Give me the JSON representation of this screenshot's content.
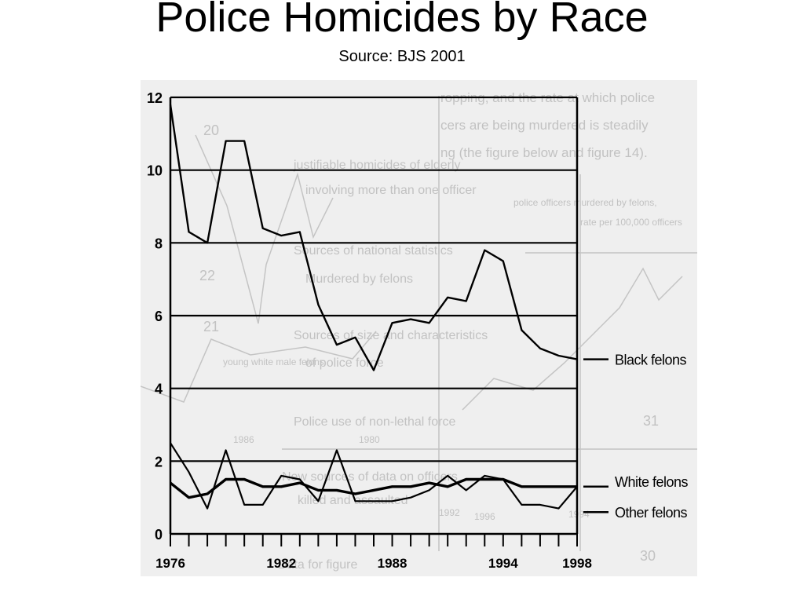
{
  "slide": {
    "title": "Police Homicides by Race",
    "subtitle": "Source: BJS 2001"
  },
  "chart_data": {
    "type": "line",
    "title": "",
    "xlabel": "",
    "ylabel": "",
    "xlim": [
      1976,
      1998
    ],
    "ylim": [
      0,
      12
    ],
    "x_ticks": [
      1976,
      1982,
      1988,
      1994,
      1998
    ],
    "y_ticks": [
      0,
      2,
      4,
      6,
      8,
      10,
      12
    ],
    "grid": "horizontal",
    "x": [
      1976,
      1977,
      1978,
      1979,
      1980,
      1981,
      1982,
      1983,
      1984,
      1985,
      1986,
      1987,
      1988,
      1989,
      1990,
      1991,
      1992,
      1993,
      1994,
      1995,
      1996,
      1997,
      1998
    ],
    "series": [
      {
        "name": "Black felons",
        "color": "#000000",
        "values": [
          11.8,
          8.3,
          8.0,
          10.8,
          10.8,
          8.4,
          8.2,
          8.3,
          6.3,
          5.2,
          5.4,
          4.5,
          5.8,
          5.9,
          5.8,
          6.5,
          6.4,
          7.8,
          7.5,
          5.6,
          5.1,
          4.9,
          4.8
        ]
      },
      {
        "name": "White felons",
        "color": "#000000",
        "values": [
          1.4,
          1.0,
          1.1,
          1.5,
          1.5,
          1.3,
          1.3,
          1.4,
          1.2,
          1.2,
          1.1,
          1.2,
          1.3,
          1.3,
          1.4,
          1.3,
          1.5,
          1.5,
          1.5,
          1.3,
          1.3,
          1.3,
          1.3
        ]
      },
      {
        "name": "Other felons",
        "color": "#000000",
        "values": [
          2.5,
          1.7,
          0.7,
          2.3,
          0.8,
          0.8,
          1.6,
          1.5,
          0.9,
          2.3,
          0.9,
          0.9,
          0.9,
          1.0,
          1.2,
          1.6,
          1.2,
          1.6,
          1.5,
          0.8,
          0.8,
          0.7,
          1.3
        ]
      }
    ]
  },
  "background_text": [
    "ropping, and the rate at which police",
    "cers are being murdered is steadily",
    "ng (the figure below and figure 14).",
    "justifiable homicides of elderly",
    "involving more than one officer",
    "Sources of national statistics",
    "Murdered by felons",
    "Sources of size and characteristics",
    "of police force",
    "Police use of non-lethal force",
    "New sources of data on officers",
    "killed and assaulted",
    "Data for figure",
    "police officers murdered by felons,",
    "rate per 100,000 officers",
    "young white male felons",
    "1986",
    "1980",
    "1994",
    "1996",
    "1992",
    "20",
    "22",
    "21",
    "31",
    "30"
  ]
}
